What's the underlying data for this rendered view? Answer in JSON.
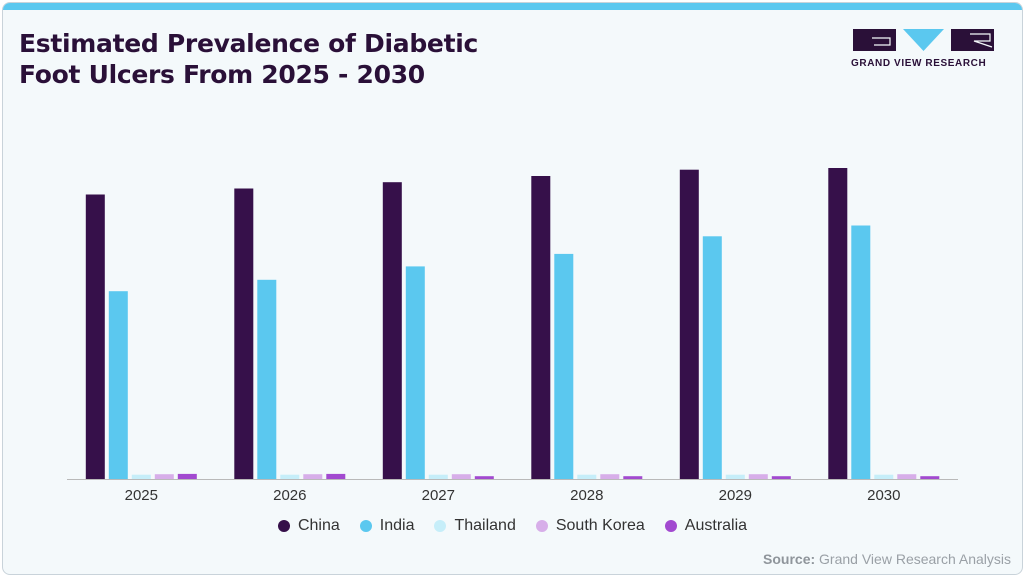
{
  "title_line1": "Estimated Prevalence of Diabetic",
  "title_line2": "Foot Ulcers From 2025 - 2030",
  "logo": {
    "text": "GRAND VIEW RESEARCH",
    "color": "#2a1038",
    "accent": "#5bc8ef"
  },
  "source": {
    "label": "Source:",
    "text": "Grand View Research Analysis"
  },
  "chart_data": {
    "type": "bar",
    "title": "Estimated Prevalence of Diabetic Foot Ulcers From 2025 - 2030",
    "xlabel": "",
    "ylabel": "",
    "ylim": [
      0,
      110
    ],
    "grid": false,
    "legend_position": "bottom",
    "categories": [
      "2025",
      "2026",
      "2027",
      "2028",
      "2029",
      "2030"
    ],
    "series": [
      {
        "name": "China",
        "color": "#36104a",
        "values": [
          100.0,
          102.1,
          104.3,
          106.5,
          108.7,
          109.3
        ]
      },
      {
        "name": "India",
        "color": "#5bc8ef",
        "values": [
          66.0,
          70.0,
          74.7,
          79.1,
          85.3,
          89.1
        ]
      },
      {
        "name": "Thailand",
        "color": "#c6eef9",
        "values": [
          1.5,
          1.5,
          1.5,
          1.5,
          1.5,
          1.5
        ]
      },
      {
        "name": "South Korea",
        "color": "#d7aee9",
        "values": [
          1.7,
          1.7,
          1.7,
          1.7,
          1.7,
          1.7
        ]
      },
      {
        "name": "Australia",
        "color": "#a24ad0",
        "values": [
          1.8,
          1.8,
          1.0,
          1.0,
          1.0,
          1.0
        ]
      }
    ]
  }
}
